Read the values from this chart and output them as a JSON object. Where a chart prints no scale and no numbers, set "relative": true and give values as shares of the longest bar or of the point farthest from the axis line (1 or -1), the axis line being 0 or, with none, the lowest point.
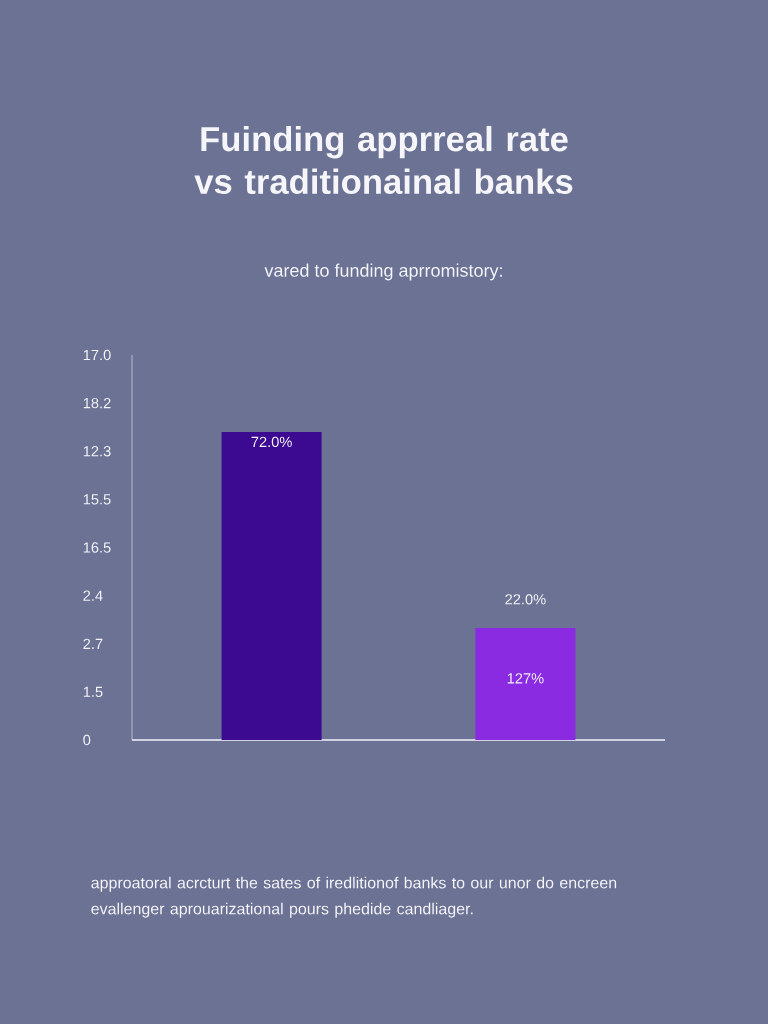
{
  "chart_data": {
    "type": "bar",
    "title": "Fuinding apprreal rate vs traditionainal banks",
    "subtitle": "vared to funding aprromistory:",
    "categories": [
      null,
      null
    ],
    "values": [
      1,
      0.364
    ],
    "relative": true,
    "colors": [
      "#3b0a91",
      "#8a2be2"
    ],
    "annotations": [
      "17.0",
      "18.2",
      "12.3",
      "15.5",
      "16.5",
      "2.4",
      "2.7",
      "1.5",
      "0",
      "72.0%",
      "22.0%",
      "127%",
      "approatoral acrcturt the sates of iredlitionof banks to our unor do encreen evallenger aprouarizational pours phedide candliager."
    ]
  }
}
